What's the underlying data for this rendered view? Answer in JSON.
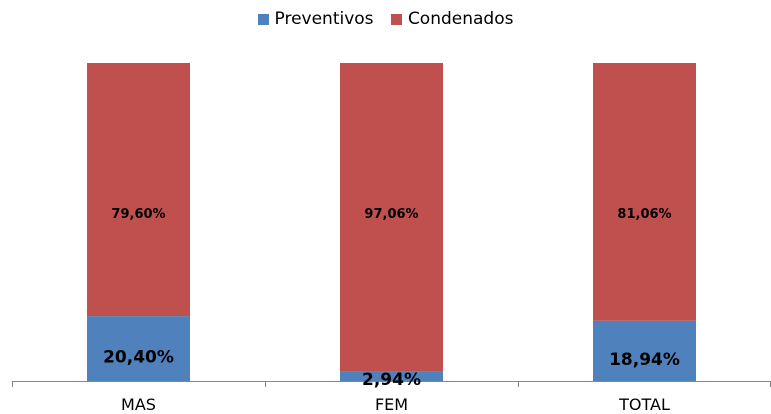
{
  "chart_data": {
    "type": "bar",
    "stacked": true,
    "normalized_percent": true,
    "categories": [
      "MAS",
      "FEM",
      "TOTAL"
    ],
    "series": [
      {
        "name": "Preventivos",
        "color": "#4F81BD",
        "values": [
          20.4,
          2.94,
          18.94
        ],
        "labels": [
          "20,40%",
          "2,94%",
          "18,94%"
        ]
      },
      {
        "name": "Condenados",
        "color": "#C0504D",
        "values": [
          79.6,
          97.06,
          81.06
        ],
        "labels": [
          "79,60%",
          "97,06%",
          "81,06%"
        ]
      }
    ],
    "ylim": [
      0,
      100
    ],
    "legend_position": "top",
    "grid": false,
    "title": "",
    "xlabel": "",
    "ylabel": ""
  }
}
